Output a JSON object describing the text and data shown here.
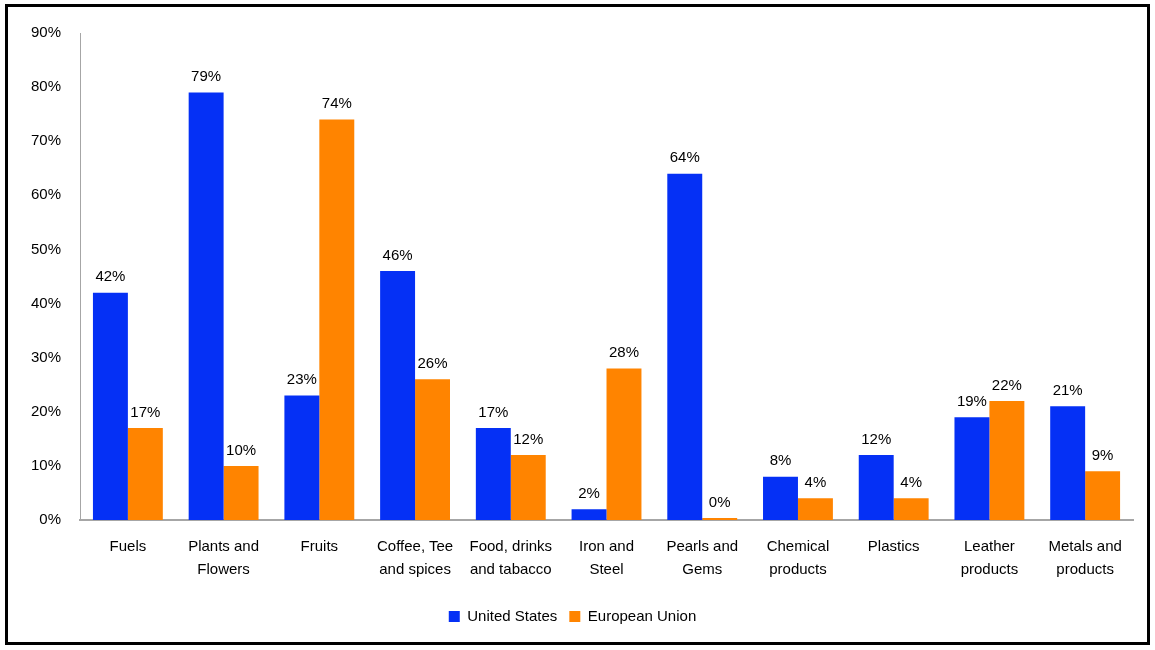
{
  "chart_data": {
    "type": "bar",
    "categories": [
      "Fuels",
      "Plants and Flowers",
      "Fruits",
      "Coffee, Tee and spices",
      "Food, drinks and tabacco",
      "Iron and Steel",
      "Pearls and Gems",
      "Chemical products",
      "Plastics",
      "Leather products",
      "Metals and products"
    ],
    "series": [
      {
        "name": "United States",
        "color": "#0530f5",
        "values": [
          42,
          79,
          23,
          46,
          17,
          2,
          64,
          8,
          12,
          19,
          21
        ],
        "value_labels": [
          "42%",
          "79%",
          "23%",
          "46%",
          "17%",
          "2%",
          "64%",
          "8%",
          "12%",
          "19%",
          "21%"
        ]
      },
      {
        "name": "European Union",
        "color": "#ff8400",
        "values": [
          17,
          10,
          74,
          26,
          12,
          28,
          0,
          4,
          4,
          22,
          9
        ],
        "value_labels": [
          "17%",
          "10%",
          "74%",
          "26%",
          "12%",
          "28%",
          "0%",
          "4%",
          "4%",
          "22%",
          "9%"
        ]
      }
    ],
    "ylim": [
      0,
      90
    ],
    "yticks": [
      {
        "value": 0,
        "label": "0%"
      },
      {
        "value": 10,
        "label": "10%"
      },
      {
        "value": 20,
        "label": "20%"
      },
      {
        "value": 30,
        "label": "30%"
      },
      {
        "value": 40,
        "label": "40%"
      },
      {
        "value": 50,
        "label": "50%"
      },
      {
        "value": 60,
        "label": "60%"
      },
      {
        "value": 70,
        "label": "70%"
      },
      {
        "value": 80,
        "label": "80%"
      },
      {
        "value": 90,
        "label": "90%"
      }
    ],
    "legend": "bottom"
  }
}
